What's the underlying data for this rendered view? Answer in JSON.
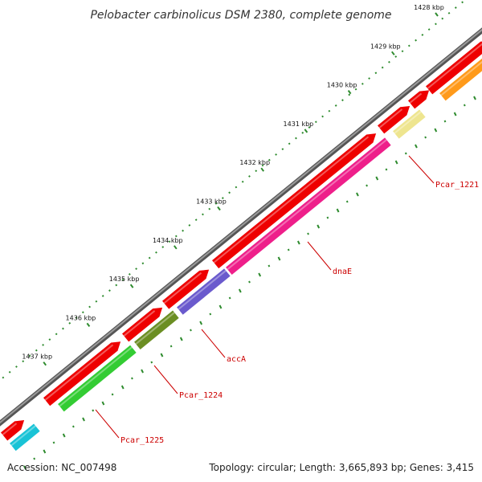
{
  "title": "Pelobacter carbinolicus DSM 2380, complete genome",
  "ticks": [
    {
      "label": "1428 kbp",
      "kbp": 1428
    },
    {
      "label": "1429 kbp",
      "kbp": 1429
    },
    {
      "label": "1430 kbp",
      "kbp": 1430
    },
    {
      "label": "1431 kbp",
      "kbp": 1431
    },
    {
      "label": "1432 kbp",
      "kbp": 1432
    },
    {
      "label": "1433 kbp",
      "kbp": 1433
    },
    {
      "label": "1434 kbp",
      "kbp": 1434
    },
    {
      "label": "1435 kbp",
      "kbp": 1435
    },
    {
      "label": "1436 kbp",
      "kbp": 1436
    },
    {
      "label": "1437 kbp",
      "kbp": 1437
    }
  ],
  "gene_labels": {
    "pcar_1221": "Pcar_1221",
    "dnae": "dnaE",
    "acca": "accA",
    "pcar_1224": "Pcar_1224",
    "pcar_1225": "Pcar_1225"
  },
  "colors": {
    "backbone": "#7a7a7a",
    "cds": "#ee0000",
    "pcar_1221": "#eee58f",
    "dnae": "#ee1f8a",
    "acca": "#6a5acd",
    "pcar_1224": "#6b8e23",
    "pcar_1225": "#33cc33",
    "cyan": "#19c3d6",
    "orange": "#ff9a1a",
    "tick": "#2e8b2e",
    "label_line": "#cc0000"
  },
  "footer": {
    "accession": "Accession: NC_007498",
    "summary": "Topology: circular; Length: 3,665,893 bp; Genes: 3,415"
  }
}
